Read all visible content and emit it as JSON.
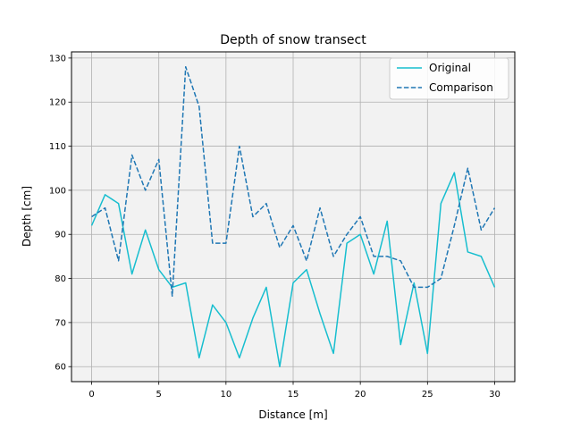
{
  "chart_data": {
    "type": "line",
    "title": "Depth of snow transect",
    "xlabel": "Distance [m]",
    "ylabel": "Depth [cm]",
    "xlim": [
      -1.5,
      31.5
    ],
    "ylim": [
      56.6,
      131.4
    ],
    "xticks": [
      0,
      5,
      10,
      15,
      20,
      25,
      30
    ],
    "yticks": [
      60,
      70,
      80,
      90,
      100,
      110,
      120,
      130
    ],
    "grid": true,
    "legend_position": "top-right",
    "x": [
      0,
      1,
      2,
      3,
      4,
      5,
      6,
      7,
      8,
      9,
      10,
      11,
      12,
      13,
      14,
      15,
      16,
      17,
      18,
      19,
      20,
      21,
      22,
      23,
      24,
      25,
      26,
      27,
      28,
      29,
      30
    ],
    "series": [
      {
        "name": "Original",
        "color": "#17becf",
        "style": "solid",
        "values": [
          92,
          99,
          97,
          81,
          91,
          82,
          78,
          79,
          62,
          74,
          70,
          62,
          71,
          78,
          60,
          79,
          82,
          72,
          63,
          88,
          90,
          81,
          93,
          65,
          79,
          63,
          97,
          104,
          86,
          85,
          78
        ]
      },
      {
        "name": "Comparison",
        "color": "#1f77b4",
        "style": "dashed",
        "values": [
          94,
          96,
          84,
          108,
          100,
          107,
          76,
          128,
          119,
          88,
          88,
          110,
          94,
          97,
          87,
          92,
          84,
          96,
          85,
          90,
          94,
          85,
          85,
          84,
          78,
          78,
          80,
          92,
          105,
          91,
          96
        ]
      }
    ],
    "plot_background": "#f2f2f2"
  }
}
